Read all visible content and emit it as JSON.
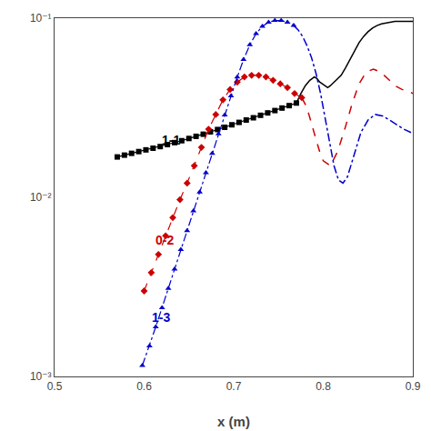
{
  "chart_data": {
    "type": "line",
    "xlabel": "x (m)",
    "xlim": [
      0.5,
      0.9
    ],
    "xticks": [
      0.5,
      0.6,
      0.7,
      0.8,
      0.9
    ],
    "log": "y",
    "ylim": [
      0.001,
      0.1
    ],
    "yticks": [
      {
        "value": 0.001,
        "label": "10⁻³"
      },
      {
        "value": 0.01,
        "label": "10⁻²"
      },
      {
        "value": 0.1,
        "label": "10⁻¹"
      }
    ],
    "grid": false,
    "series": [
      {
        "color": "black",
        "marker": "square",
        "line_style": "solid",
        "x": [
          0.57,
          0.578,
          0.586,
          0.594,
          0.602,
          0.61,
          0.618,
          0.626,
          0.634,
          0.642,
          0.65,
          0.658,
          0.666,
          0.674,
          0.682,
          0.69,
          0.698,
          0.706,
          0.714,
          0.722,
          0.73,
          0.738,
          0.746,
          0.754,
          0.762,
          0.77
        ],
        "values": [
          0.0168,
          0.0172,
          0.0176,
          0.018,
          0.0184,
          0.0188,
          0.0192,
          0.0197,
          0.0202,
          0.0207,
          0.0213,
          0.0219,
          0.0225,
          0.0232,
          0.0239,
          0.0246,
          0.0254,
          0.0262,
          0.027,
          0.0278,
          0.0287,
          0.0296,
          0.0305,
          0.0315,
          0.0325,
          0.0336
        ]
      },
      {
        "color": "black",
        "marker": "none",
        "line_style": "solid",
        "x": [
          0.77,
          0.775,
          0.78,
          0.785,
          0.79,
          0.793,
          0.796,
          0.799,
          0.802,
          0.805,
          0.808,
          0.812,
          0.816,
          0.82,
          0.825,
          0.83,
          0.835,
          0.84,
          0.845,
          0.85,
          0.855,
          0.86,
          0.865,
          0.87,
          0.875,
          0.88,
          0.885,
          0.89,
          0.895,
          0.9
        ],
        "values": [
          0.0336,
          0.038,
          0.042,
          0.045,
          0.047,
          0.046,
          0.044,
          0.043,
          0.042,
          0.041,
          0.042,
          0.044,
          0.046,
          0.048,
          0.053,
          0.059,
          0.066,
          0.073,
          0.079,
          0.084,
          0.088,
          0.091,
          0.093,
          0.094,
          0.095,
          0.096,
          0.096,
          0.096,
          0.096,
          0.096
        ]
      },
      {
        "color": "#cc0000",
        "marker": "diamond",
        "line_style": "dash",
        "x": [
          0.6,
          0.608,
          0.616,
          0.624,
          0.632,
          0.64,
          0.648,
          0.656,
          0.664,
          0.672,
          0.68,
          0.688,
          0.696,
          0.704,
          0.712,
          0.72,
          0.728,
          0.736,
          0.744,
          0.752,
          0.76,
          0.768,
          0.776
        ],
        "values": [
          0.003,
          0.0038,
          0.0048,
          0.0061,
          0.0077,
          0.0097,
          0.012,
          0.015,
          0.019,
          0.024,
          0.029,
          0.035,
          0.04,
          0.044,
          0.047,
          0.048,
          0.048,
          0.047,
          0.045,
          0.043,
          0.041,
          0.038,
          0.036
        ]
      },
      {
        "color": "#cc0000",
        "marker": "none",
        "line_style": "dash",
        "x": [
          0.776,
          0.78,
          0.784,
          0.788,
          0.792,
          0.796,
          0.8,
          0.808,
          0.816,
          0.824,
          0.832,
          0.84,
          0.848,
          0.856,
          0.864,
          0.872,
          0.88,
          0.888,
          0.896,
          0.9
        ],
        "values": [
          0.036,
          0.033,
          0.029,
          0.025,
          0.021,
          0.018,
          0.016,
          0.015,
          0.018,
          0.024,
          0.033,
          0.043,
          0.05,
          0.052,
          0.05,
          0.046,
          0.042,
          0.04,
          0.039,
          0.038
        ]
      },
      {
        "color": "#0000cc",
        "marker": "triangle-up",
        "line_style": "dashdot",
        "x": [
          0.598,
          0.606,
          0.613,
          0.62,
          0.627,
          0.634,
          0.641,
          0.648,
          0.655,
          0.662,
          0.669,
          0.676,
          0.683,
          0.69,
          0.697,
          0.704,
          0.711,
          0.718,
          0.725,
          0.732,
          0.739,
          0.746,
          0.753,
          0.76,
          0.767
        ],
        "values": [
          0.00115,
          0.00148,
          0.00189,
          0.00242,
          0.0031,
          0.00397,
          0.0051,
          0.0065,
          0.0084,
          0.0107,
          0.0137,
          0.0176,
          0.0226,
          0.0288,
          0.0368,
          0.0469,
          0.0587,
          0.071,
          0.082,
          0.09,
          0.095,
          0.097,
          0.097,
          0.095,
          0.091
        ]
      },
      {
        "color": "#0000cc",
        "marker": "none",
        "line_style": "dashdot",
        "x": [
          0.767,
          0.772,
          0.777,
          0.782,
          0.787,
          0.792,
          0.797,
          0.802,
          0.807,
          0.812,
          0.817,
          0.822,
          0.827,
          0.832,
          0.837,
          0.842,
          0.85,
          0.858,
          0.866,
          0.874,
          0.882,
          0.89,
          0.898
        ],
        "values": [
          0.091,
          0.086,
          0.079,
          0.07,
          0.06,
          0.049,
          0.038,
          0.028,
          0.02,
          0.015,
          0.0125,
          0.012,
          0.013,
          0.0155,
          0.019,
          0.023,
          0.027,
          0.029,
          0.0285,
          0.027,
          0.0255,
          0.024,
          0.023
        ]
      }
    ],
    "annotations": [
      {
        "text": "1-1",
        "x": 0.618,
        "y": 0.021,
        "color": "black"
      },
      {
        "text": "0-2",
        "x": 0.611,
        "y": 0.0058,
        "color": "#cc0000"
      },
      {
        "text": "1-3",
        "x": 0.607,
        "y": 0.00215,
        "color": "#0000cc"
      }
    ]
  }
}
